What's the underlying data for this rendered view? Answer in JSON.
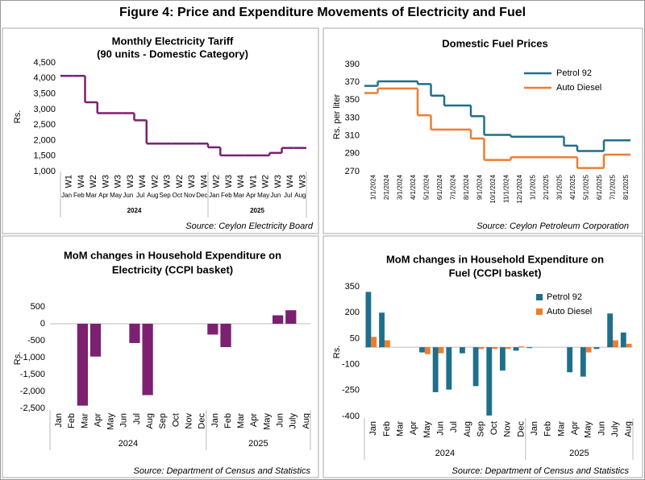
{
  "title": "Figure 4: Price and Expenditure Movements of Electricity and Fuel",
  "chart_data": [
    {
      "type": "line",
      "step": true,
      "title": [
        "Monthly Electricity Tariff",
        "(90 units - Domestic Category)"
      ],
      "y_label": "Rs.",
      "source": "Source: Ceylon Electricity Board",
      "color": "#7b2170",
      "categories": [
        "W1",
        "W4",
        "W2",
        "W3",
        "W3",
        "W3",
        "W4",
        "W2",
        "W3",
        "W2",
        "W3",
        "W4",
        "W2",
        "W3",
        "W4",
        "W1",
        "W2",
        "W3",
        "W4",
        "W3"
      ],
      "months": [
        "Jan",
        "Feb",
        "Mar",
        "Apr",
        "May",
        "Jun",
        "Jul",
        "Aug",
        "Sep",
        "Oct",
        "Nov",
        "Dec",
        "Jan",
        "Feb",
        "Mar",
        "Apr",
        "May",
        "Jun",
        "Jul",
        "Aug"
      ],
      "groups": [
        {
          "label": "2024",
          "count": 12
        },
        {
          "label": "2025",
          "count": 8
        }
      ],
      "values": [
        4080,
        4080,
        3230,
        2880,
        2880,
        2880,
        2650,
        1900,
        1900,
        1900,
        1900,
        1900,
        1780,
        1520,
        1520,
        1520,
        1520,
        1600,
        1760,
        1760
      ],
      "ylim": [
        1000,
        4500
      ],
      "yticks": [
        {
          "value": 4500,
          "label": "4,500"
        },
        {
          "value": 4000,
          "label": "4,000"
        },
        {
          "value": 3500,
          "label": "3,500"
        },
        {
          "value": 3000,
          "label": "3,000"
        },
        {
          "value": 2500,
          "label": "2,500"
        },
        {
          "value": 2000,
          "label": "2,000"
        },
        {
          "value": 1500,
          "label": "1,500"
        },
        {
          "value": 1000,
          "label": "1,000"
        }
      ],
      "grid": false
    },
    {
      "type": "line",
      "step": true,
      "title": [
        "Domestic Fuel Prices"
      ],
      "y_label": "Rs. per liter",
      "source": "Source: Ceylon Petroleum Corporation",
      "categories": [
        "1/1/2024",
        "2/1/2024",
        "3/1/2024",
        "4/1/2024",
        "5/1/2024",
        "6/1/2024",
        "7/1/2024",
        "8/1/2024",
        "9/1/2024",
        "10/1/2024",
        "11/1/2024",
        "12/1/2024",
        "1/1/2025",
        "2/1/2025",
        "3/1/2025",
        "4/1/2025",
        "5/1/2025",
        "6/1/2025",
        "7/1/2025",
        "8/1/2025"
      ],
      "series": [
        {
          "name": "Petrol 92",
          "color": "#1f6f8b",
          "values": [
            366,
            371,
            371,
            371,
            368,
            355,
            344,
            344,
            332,
            311,
            311,
            309,
            309,
            309,
            309,
            299,
            293,
            293,
            305,
            305
          ]
        },
        {
          "name": "Auto Diesel",
          "color": "#ed7d31",
          "values": [
            358,
            363,
            363,
            363,
            333,
            317,
            317,
            317,
            307,
            283,
            283,
            286,
            286,
            286,
            286,
            286,
            274,
            274,
            289,
            289
          ]
        }
      ],
      "ylim": [
        270,
        390
      ],
      "yticks": [
        390,
        370,
        350,
        330,
        310,
        290,
        270
      ],
      "grid": false,
      "legend": "top-right"
    },
    {
      "type": "bar",
      "title": [
        "MoM changes in Household Expenditure on",
        "Electricity (CCPI basket)"
      ],
      "y_label": "Rs.",
      "source": "Source: Department of Census and Statistics",
      "color": "#7b2170",
      "categories": [
        "Jan",
        "Feb",
        "Mar",
        "Apr",
        "May",
        "Jun",
        "Jul",
        "Aug",
        "Sep",
        "Oct",
        "Nov",
        "Dec",
        "Jan",
        "Feb",
        "Mar",
        "Apr",
        "May",
        "Jun",
        "July",
        "Aug"
      ],
      "groups": [
        {
          "label": "2024",
          "count": 12
        },
        {
          "label": "2025",
          "count": 8
        }
      ],
      "values": [
        null,
        null,
        -2420,
        -970,
        null,
        null,
        -570,
        -2110,
        null,
        null,
        null,
        null,
        -320,
        -690,
        null,
        null,
        null,
        250,
        400,
        null
      ],
      "ylim": [
        -2500,
        500
      ],
      "yticks": [
        500,
        0,
        -500,
        {
          "value": -1000,
          "label": "-1,000"
        },
        {
          "value": -1500,
          "label": "-1,500"
        },
        {
          "value": -2000,
          "label": "-2,000"
        },
        {
          "value": -2500,
          "label": "-2,500"
        }
      ],
      "grid": false
    },
    {
      "type": "bar",
      "title": [
        "MoM changes in Household Expenditure on",
        "Fuel (CCPI basket)"
      ],
      "y_label": "Rs.",
      "source": "Source: Department of Census and Statistics",
      "categories": [
        "Jan",
        "Feb",
        "Mar",
        "Apr",
        "May",
        "Jun",
        "Jul",
        "Aug",
        "Sep",
        "Oct",
        "Nov",
        "Dec",
        "Jan",
        "Feb",
        "Mar",
        "Apr",
        "May",
        "Jun",
        "July",
        "Aug"
      ],
      "groups": [
        {
          "label": "2024",
          "count": 12
        },
        {
          "label": "2025",
          "count": 8
        }
      ],
      "series": [
        {
          "name": "Petrol 92",
          "color": "#1f6f8b",
          "values": [
            320,
            200,
            null,
            null,
            -30,
            -260,
            -245,
            -35,
            -225,
            -395,
            -135,
            -20,
            -5,
            null,
            null,
            -145,
            -170,
            -10,
            195,
            85
          ]
        },
        {
          "name": "Auto Diesel",
          "color": "#ed7d31",
          "values": [
            60,
            40,
            null,
            null,
            -40,
            -35,
            null,
            null,
            -10,
            -10,
            -10,
            5,
            null,
            null,
            null,
            null,
            -30,
            null,
            40,
            20
          ]
        }
      ],
      "ylim": [
        -400,
        350
      ],
      "yticks": [
        350,
        200,
        50,
        -100,
        -250,
        -400
      ],
      "grid": false,
      "legend": "top-right"
    }
  ]
}
